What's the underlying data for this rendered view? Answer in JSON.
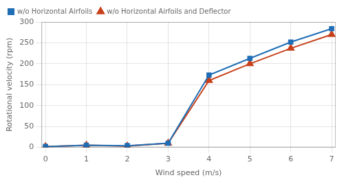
{
  "chart_data": {
    "type": "line",
    "x": [
      0,
      1,
      2,
      3,
      4,
      5,
      6,
      7
    ],
    "series": [
      {
        "name": "w/o Horizontal Airfoils",
        "color": "#1f6db5",
        "marker": "square",
        "values": [
          2,
          5,
          4,
          10,
          173,
          213,
          252,
          284
        ]
      },
      {
        "name": "w/o Horizontal Airfoils and Deflector",
        "color": "#c8401a",
        "marker": "triangle",
        "values": [
          2,
          5,
          3,
          10,
          160,
          200,
          237,
          270
        ]
      }
    ],
    "xlabel": "Wind speed (m/s)",
    "ylabel": "Rotational velocity (rpm)",
    "xlim": [
      -0.1,
      7.1
    ],
    "ylim": [
      0,
      300
    ],
    "xticks": [
      0,
      1,
      2,
      3,
      4,
      5,
      6,
      7
    ],
    "yticks": [
      0,
      50,
      100,
      150,
      200,
      250,
      300
    ],
    "grid": true,
    "legend": "upper left"
  }
}
